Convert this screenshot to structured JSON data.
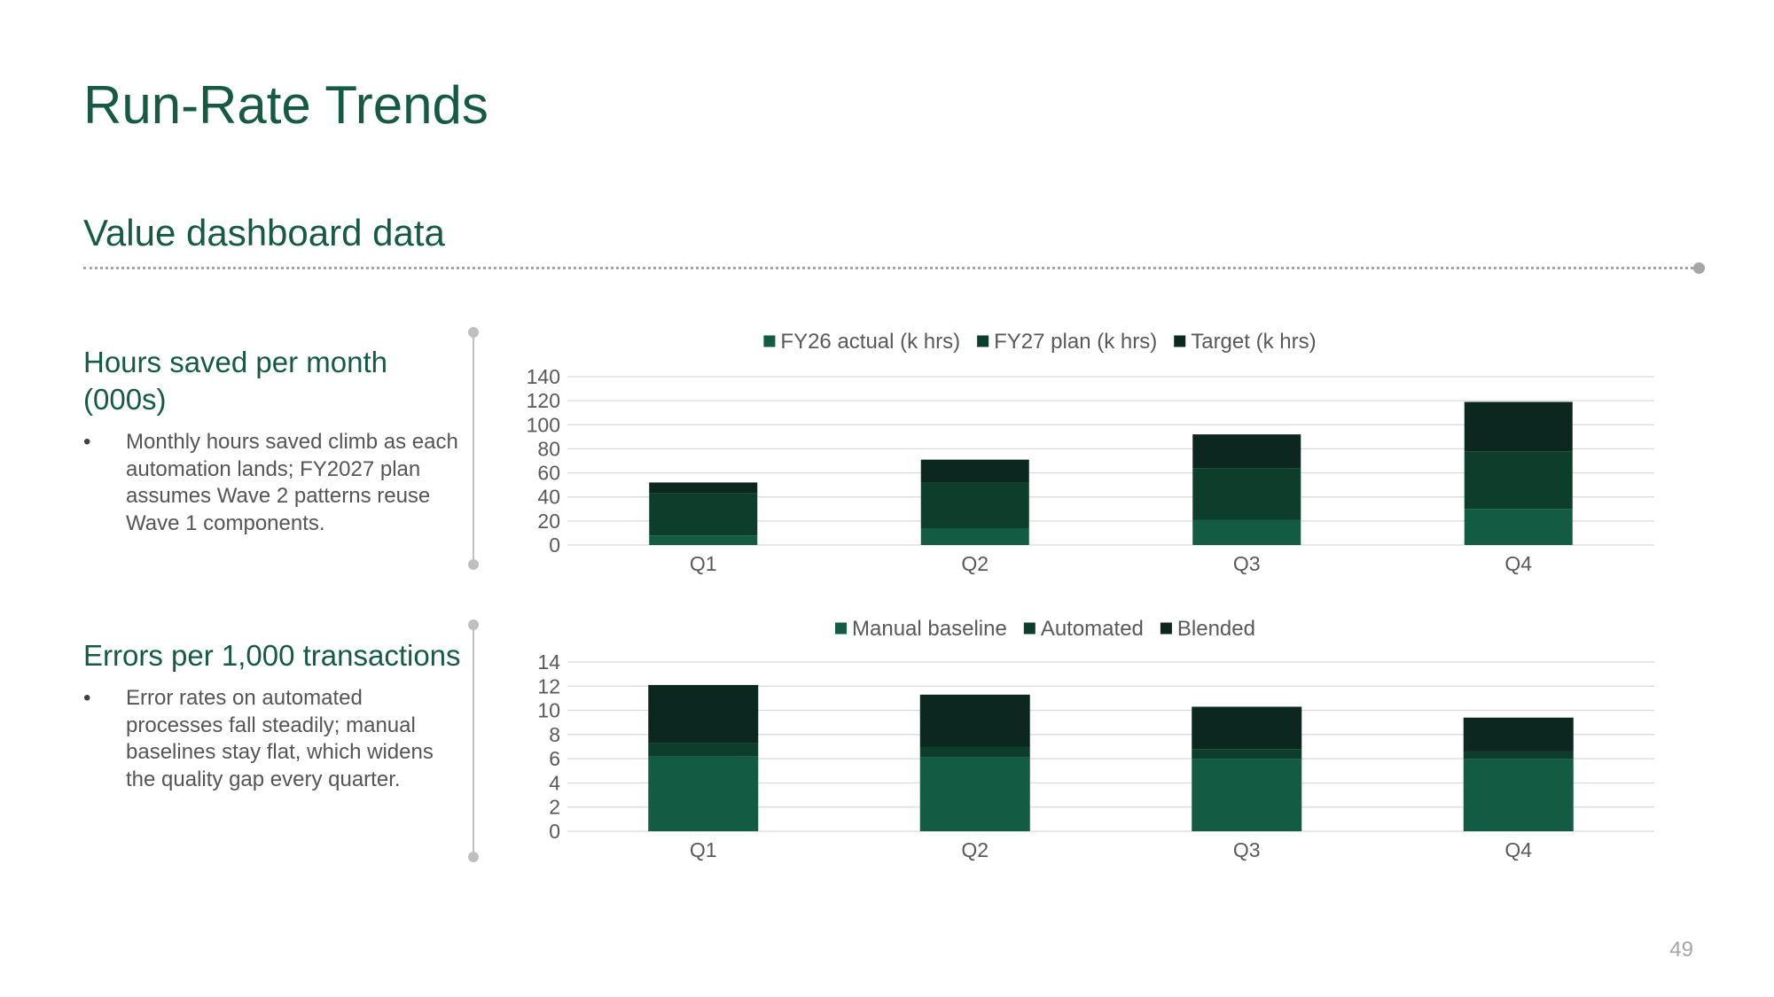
{
  "slide": {
    "title": "Run-Rate Trends",
    "subtitle": "Value dashboard data",
    "page_number": "49"
  },
  "panels": [
    {
      "heading": "Hours saved per month (000s)",
      "bullet": "Monthly hours saved climb as each automation lands; FY2027 plan assumes Wave 2 patterns reuse Wave 1 components."
    },
    {
      "heading": "Errors per 1,000 transactions",
      "bullet": "Error rates on automated processes fall steadily; manual baselines stay flat, which widens the quality gap every quarter."
    }
  ],
  "bullet_symbol": "•",
  "colors": {
    "accent": "#165a46",
    "text": "#404040",
    "gridline": "#d9d9d9",
    "series_1": "#135c43",
    "series_2": "#0d3e2c",
    "series_3": "#0b2720"
  },
  "chart_data": [
    {
      "type": "bar",
      "stacked": true,
      "categories": [
        "Q1",
        "Q2",
        "Q3",
        "Q4"
      ],
      "series": [
        {
          "name": "FY26 actual (k hrs)",
          "values": [
            8,
            14,
            21,
            30
          ]
        },
        {
          "name": "FY27 plan (k hrs)",
          "values": [
            35,
            38,
            43,
            48
          ]
        },
        {
          "name": "Target (k hrs)",
          "values": [
            9,
            19,
            28,
            41
          ]
        }
      ],
      "y_ticks": [
        0,
        20,
        40,
        60,
        80,
        100,
        120,
        140
      ],
      "ylim": [
        0,
        140
      ],
      "grid": true,
      "legend_position": "top"
    },
    {
      "type": "bar",
      "stacked": true,
      "categories": [
        "Q1",
        "Q2",
        "Q3",
        "Q4"
      ],
      "series": [
        {
          "name": "Manual baseline",
          "values": [
            6.2,
            6.1,
            6.0,
            6.0
          ]
        },
        {
          "name": "Automated",
          "values": [
            1.1,
            0.9,
            0.8,
            0.6
          ]
        },
        {
          "name": "Blended",
          "values": [
            4.8,
            4.3,
            3.5,
            2.8
          ]
        }
      ],
      "y_ticks": [
        0,
        2,
        4,
        6,
        8,
        10,
        12,
        14
      ],
      "ylim": [
        0,
        14
      ],
      "grid": true,
      "legend_position": "top"
    }
  ]
}
